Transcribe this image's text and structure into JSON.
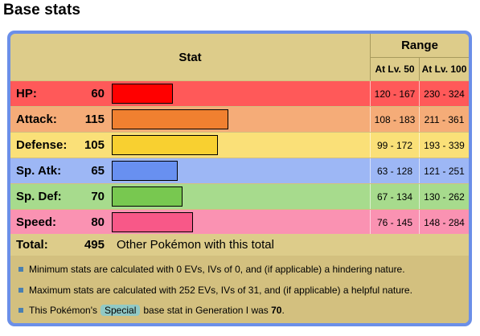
{
  "heading": "Base stats",
  "header": {
    "stat": "Stat",
    "range": "Range",
    "lv50": "At Lv. 50",
    "lv100": "At Lv. 100"
  },
  "stats": [
    {
      "label": "HP:",
      "value": 60,
      "lv50": "120 - 167",
      "lv100": "230 - 324",
      "row_color": "#ff5959",
      "bar_color": "#ff0000"
    },
    {
      "label": "Attack:",
      "value": 115,
      "lv50": "108 - 183",
      "lv100": "211 - 361",
      "row_color": "#f5ac78",
      "bar_color": "#f08030"
    },
    {
      "label": "Defense:",
      "value": 105,
      "lv50": "99 - 172",
      "lv100": "193 - 339",
      "row_color": "#fae078",
      "bar_color": "#f8d030"
    },
    {
      "label": "Sp. Atk:",
      "value": 65,
      "lv50": "63 - 128",
      "lv100": "121 - 251",
      "row_color": "#9db7f5",
      "bar_color": "#6890f0"
    },
    {
      "label": "Sp. Def:",
      "value": 70,
      "lv50": "67 - 134",
      "lv100": "130 - 262",
      "row_color": "#a7db8d",
      "bar_color": "#78c850"
    },
    {
      "label": "Speed:",
      "value": 80,
      "lv50": "76 - 145",
      "lv100": "148 - 284",
      "row_color": "#fa92b2",
      "bar_color": "#f85888"
    }
  ],
  "total": {
    "label": "Total:",
    "value": 495,
    "other": "Other Pokémon with this total"
  },
  "notes": {
    "min": "Minimum stats are calculated with 0 EVs, IVs of 0, and (if applicable) a hindering nature.",
    "max": "Maximum stats are calculated with 252 EVs, IVs of 31, and (if applicable) a helpful nature.",
    "gen1_prefix": "This Pokémon's",
    "gen1_special": "Special",
    "gen1_middle": "base stat in Generation I was",
    "gen1_value": "70",
    "gen1_suffix": "."
  }
}
